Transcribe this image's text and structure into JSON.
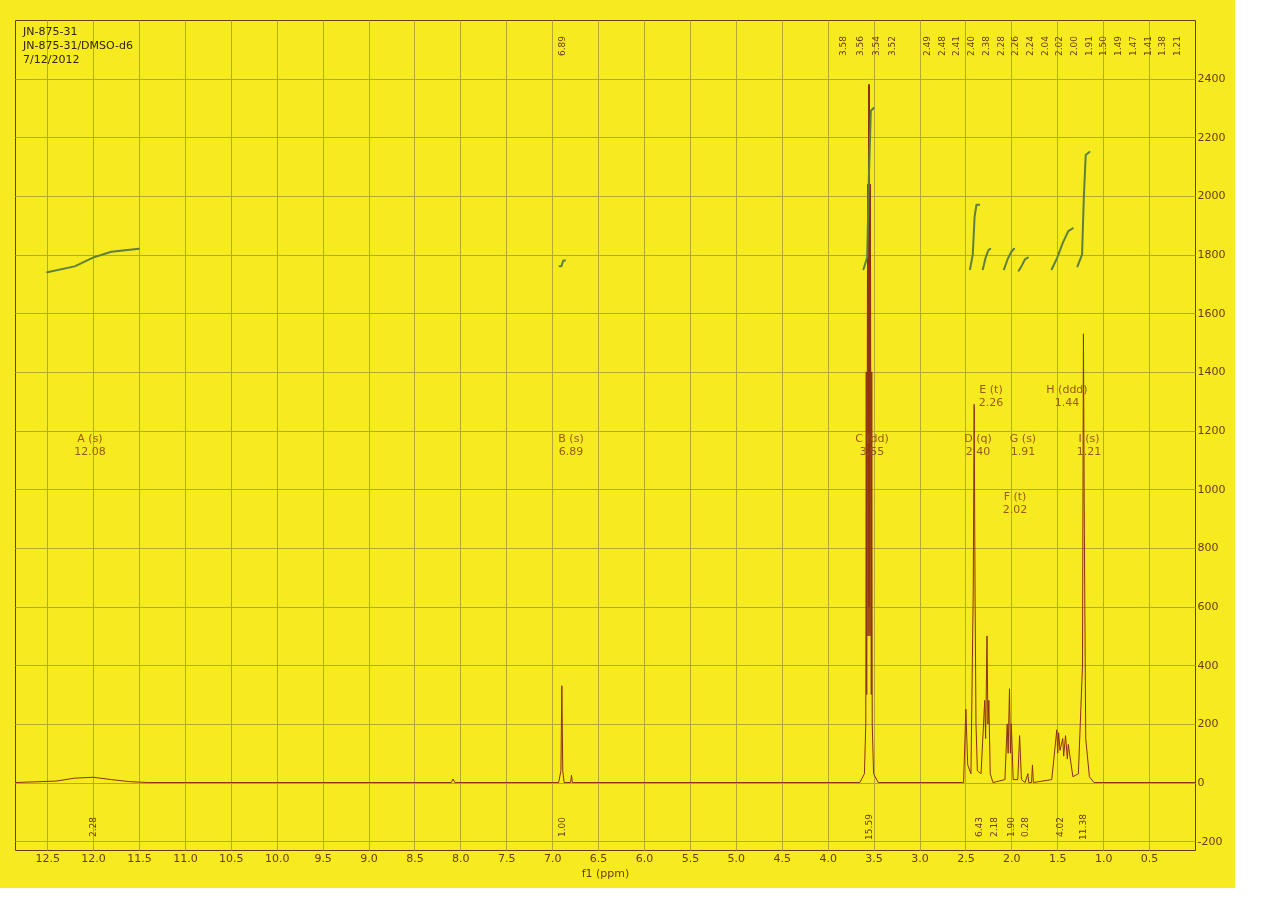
{
  "chart_data": {
    "type": "line",
    "xlabel": "f1 (ppm)",
    "xlim": [
      12.85,
      0.0
    ],
    "ylim": [
      -230,
      2600
    ],
    "xticks": [
      12.5,
      {
        "value": 12,
        "label": "12.0"
      },
      11.5,
      {
        "value": 11,
        "label": "11.0"
      },
      10.5,
      {
        "value": 10,
        "label": "10.0"
      },
      9.5,
      {
        "value": 9,
        "label": "9.0"
      },
      8.5,
      {
        "value": 8,
        "label": "8.0"
      },
      7.5,
      {
        "value": 7,
        "label": "7.0"
      },
      6.5,
      {
        "value": 6,
        "label": "6.0"
      },
      5.5,
      {
        "value": 5,
        "label": "5.0"
      },
      4.5,
      {
        "value": 4,
        "label": "4.0"
      },
      3.5,
      {
        "value": 3,
        "label": "3.0"
      },
      2.5,
      {
        "value": 2,
        "label": "2.0"
      },
      1.5,
      {
        "value": 1,
        "label": "1.0"
      },
      0.5
    ],
    "yticks": [
      -200,
      0,
      200,
      400,
      600,
      800,
      1000,
      1200,
      1400,
      1600,
      1800,
      2000,
      2200,
      2400
    ],
    "grid": true,
    "series": [
      {
        "color": "#8e2f14",
        "x": [
          12.85,
          12.4,
          12.2,
          12.0,
          11.8,
          11.6,
          11.4,
          8.1,
          8.08,
          8.06,
          6.93,
          6.905,
          6.895,
          6.885,
          6.87,
          6.8,
          6.79,
          6.78,
          3.65,
          3.6,
          3.585,
          3.58,
          3.575,
          3.565,
          3.56,
          3.555,
          3.55,
          3.545,
          3.54,
          3.535,
          3.525,
          3.52,
          3.515,
          3.5,
          3.45,
          2.52,
          2.495,
          2.485,
          2.475,
          2.44,
          2.415,
          2.405,
          2.395,
          2.385,
          2.37,
          2.33,
          2.29,
          2.28,
          2.265,
          2.255,
          2.245,
          2.23,
          2.2,
          2.07,
          2.045,
          2.035,
          2.02,
          2.01,
          2.0,
          1.98,
          1.93,
          1.91,
          1.89,
          1.85,
          1.82,
          1.81,
          1.78,
          1.77,
          1.76,
          1.56,
          1.505,
          1.495,
          1.485,
          1.47,
          1.44,
          1.43,
          1.41,
          1.39,
          1.38,
          1.33,
          1.27,
          1.225,
          1.215,
          1.205,
          1.19,
          1.15,
          1.1,
          0.0
        ],
        "values": [
          0,
          5,
          15,
          18,
          10,
          3,
          0,
          0,
          12,
          0,
          0,
          40,
          330,
          40,
          0,
          0,
          25,
          0,
          0,
          30,
          200,
          1400,
          300,
          2040,
          500,
          2380,
          600,
          2380,
          500,
          2040,
          300,
          1400,
          200,
          30,
          0,
          0,
          250,
          150,
          60,
          30,
          650,
          1290,
          640,
          200,
          40,
          30,
          280,
          150,
          500,
          200,
          280,
          30,
          0,
          10,
          200,
          100,
          320,
          100,
          200,
          10,
          10,
          160,
          10,
          0,
          30,
          0,
          0,
          60,
          0,
          10,
          180,
          100,
          170,
          110,
          150,
          90,
          160,
          80,
          130,
          20,
          30,
          400,
          1530,
          850,
          150,
          20,
          0,
          0
        ]
      },
      {
        "color": "#5f7f3f",
        "x": [
          12.5,
          12.2,
          12.0,
          11.8,
          11.5,
          null,
          6.92,
          6.9,
          6.88,
          6.86,
          null,
          3.61,
          3.57,
          3.55,
          3.53,
          3.5,
          null,
          2.45,
          2.42,
          2.4,
          2.38,
          2.35,
          null,
          2.31,
          2.28,
          2.25,
          2.23,
          null,
          2.08,
          2.04,
          2.0,
          1.97,
          null,
          1.92,
          1.89,
          1.85,
          1.82,
          null,
          1.56,
          1.5,
          1.44,
          1.38,
          1.33,
          null,
          1.28,
          1.23,
          1.21,
          1.19,
          1.15
        ],
        "values": [
          1740,
          1760,
          1790,
          1810,
          1820,
          null,
          1760,
          1760,
          1780,
          1780,
          null,
          1750,
          1790,
          2080,
          2290,
          2300,
          null,
          1750,
          1800,
          1930,
          1970,
          1970,
          null,
          1750,
          1790,
          1815,
          1820,
          null,
          1750,
          1785,
          1810,
          1820,
          null,
          1745,
          1760,
          1785,
          1790,
          null,
          1750,
          1790,
          1840,
          1880,
          1890,
          null,
          1760,
          1800,
          2000,
          2140,
          2150
        ]
      }
    ],
    "annotations": [
      "JN-875-31",
      "JN-875-31/DMSO-d6",
      "7/12/2012",
      "A (s)\n12.08",
      "B (s)\n6.89",
      "C (dd)\n3.55",
      "D (q)\n2.40",
      "E (t)\n2.26",
      "F (t)\n2.02",
      "G (s)\n1.91",
      "H (ddd)\n1.44",
      "I (s)\n1.21",
      "2.28",
      "1.00",
      "15.59",
      "6.43",
      "2.18",
      "1.90",
      "0.28",
      "4.02",
      "11.38",
      "6.89",
      "3.58",
      "3.56",
      "3.54",
      "3.52",
      "2.49",
      "2.48",
      "2.41",
      "2.40",
      "2.38",
      "2.28",
      "2.26",
      "2.24",
      "2.04",
      "2.02",
      "2.00",
      "1.91",
      "1.50",
      "1.49",
      "1.47",
      "1.41",
      "1.38",
      "1.21"
    ]
  }
}
